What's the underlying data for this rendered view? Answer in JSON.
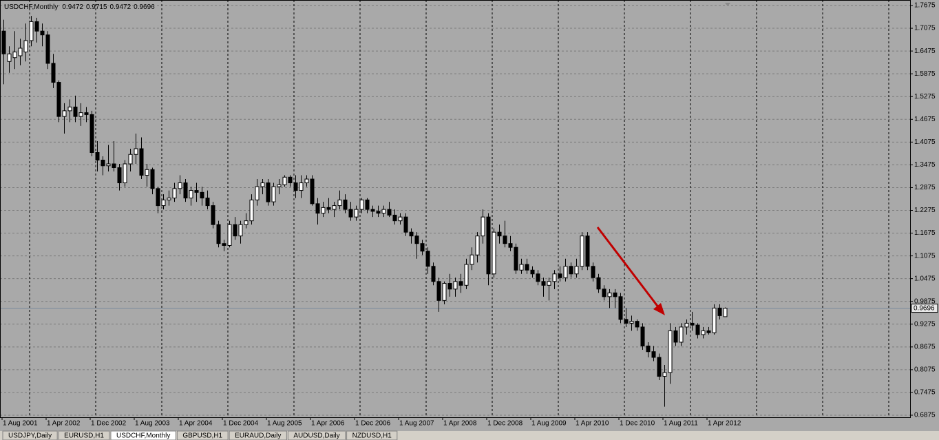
{
  "chart_data": {
    "type": "candlestick",
    "symbol": "USDCHF,Monthly",
    "categories": [
      "1 Aug 2001",
      null,
      null,
      null,
      null,
      null,
      null,
      null,
      "1 Apr 2002",
      null,
      null,
      null,
      null,
      null,
      null,
      null,
      "1 Dec 2002",
      null,
      null,
      null,
      null,
      null,
      null,
      null,
      "1 Aug 2003",
      null,
      null,
      null,
      null,
      null,
      null,
      null,
      "1 Apr 2004",
      null,
      null,
      null,
      null,
      null,
      null,
      null,
      "1 Dec 2004",
      null,
      null,
      null,
      null,
      null,
      null,
      null,
      "1 Aug 2005",
      null,
      null,
      null,
      null,
      null,
      null,
      null,
      "1 Apr 2006",
      null,
      null,
      null,
      null,
      null,
      null,
      null,
      "1 Dec 2006",
      null,
      null,
      null,
      null,
      null,
      null,
      null,
      "1 Aug 2007",
      null,
      null,
      null,
      null,
      null,
      null,
      null,
      "1 Apr 2008",
      null,
      null,
      null,
      null,
      null,
      null,
      null,
      "1 Dec 2008",
      null,
      null,
      null,
      null,
      null,
      null,
      null,
      "1 Aug 2009",
      null,
      null,
      null,
      null,
      null,
      null,
      null,
      "1 Apr 2010",
      null,
      null,
      null,
      null,
      null,
      null,
      null,
      "1 Dec 2010",
      null,
      null,
      null,
      null,
      null,
      null,
      null,
      "1 Aug 2011",
      null,
      null,
      null,
      null,
      null,
      null,
      null,
      "1 Apr 2012",
      null,
      null,
      null
    ],
    "open": [
      1.7,
      1.62,
      1.63,
      1.635,
      1.645,
      1.675,
      1.725,
      1.7,
      1.69,
      1.615,
      1.565,
      1.475,
      1.49,
      1.5,
      1.475,
      1.485,
      1.48,
      1.38,
      1.36,
      1.345,
      1.35,
      1.34,
      1.3,
      1.35,
      1.375,
      1.39,
      1.32,
      1.335,
      1.285,
      1.24,
      1.255,
      1.26,
      1.285,
      1.3,
      1.26,
      1.28,
      1.275,
      1.26,
      1.24,
      1.19,
      1.14,
      1.135,
      1.19,
      1.16,
      1.19,
      1.2,
      1.255,
      1.29,
      1.3,
      1.25,
      1.29,
      1.295,
      1.315,
      1.3,
      1.28,
      1.3,
      1.31,
      1.245,
      1.22,
      1.235,
      1.23,
      1.24,
      1.255,
      1.23,
      1.21,
      1.23,
      1.255,
      1.23,
      1.225,
      1.22,
      1.23,
      1.215,
      1.2,
      1.21,
      1.17,
      1.16,
      1.14,
      1.12,
      1.08,
      1.04,
      0.99,
      1.035,
      1.02,
      1.04,
      1.03,
      1.085,
      1.11,
      1.16,
      1.21,
      1.06,
      1.17,
      1.16,
      1.14,
      1.13,
      1.07,
      1.085,
      1.07,
      1.06,
      1.04,
      1.03,
      1.04,
      1.06,
      1.05,
      1.08,
      1.06,
      1.08,
      1.16,
      1.08,
      1.05,
      1.02,
      1.0,
      1.01,
      1.0,
      0.94,
      0.93,
      0.935,
      0.92,
      0.87,
      0.855,
      0.84,
      0.79,
      0.8,
      0.91,
      0.88,
      0.92,
      0.93,
      0.925,
      0.9,
      0.91,
      0.905,
      0.97,
      0.9472
    ],
    "high": [
      1.73,
      1.66,
      1.7,
      1.68,
      1.72,
      1.74,
      1.735,
      1.72,
      1.7,
      1.64,
      1.57,
      1.51,
      1.52,
      1.53,
      1.51,
      1.5,
      1.49,
      1.41,
      1.37,
      1.4,
      1.41,
      1.35,
      1.36,
      1.39,
      1.43,
      1.42,
      1.35,
      1.34,
      1.29,
      1.27,
      1.28,
      1.3,
      1.32,
      1.31,
      1.29,
      1.3,
      1.29,
      1.28,
      1.25,
      1.2,
      1.15,
      1.2,
      1.21,
      1.2,
      1.22,
      1.27,
      1.31,
      1.31,
      1.31,
      1.3,
      1.31,
      1.32,
      1.32,
      1.32,
      1.32,
      1.32,
      1.32,
      1.26,
      1.25,
      1.26,
      1.25,
      1.28,
      1.27,
      1.25,
      1.24,
      1.26,
      1.26,
      1.24,
      1.24,
      1.24,
      1.25,
      1.23,
      1.22,
      1.22,
      1.18,
      1.17,
      1.15,
      1.13,
      1.09,
      1.05,
      1.04,
      1.06,
      1.05,
      1.06,
      1.1,
      1.13,
      1.17,
      1.23,
      1.22,
      1.18,
      1.19,
      1.2,
      1.16,
      1.14,
      1.1,
      1.1,
      1.08,
      1.07,
      1.05,
      1.05,
      1.07,
      1.08,
      1.1,
      1.09,
      1.1,
      1.17,
      1.17,
      1.09,
      1.06,
      1.03,
      1.02,
      1.02,
      1.01,
      0.97,
      0.95,
      0.94,
      0.93,
      0.88,
      0.87,
      0.85,
      0.82,
      0.93,
      0.92,
      0.93,
      0.94,
      0.96,
      0.93,
      0.92,
      0.92,
      0.98,
      0.98,
      0.9715
    ],
    "low": [
      1.56,
      1.59,
      1.6,
      1.61,
      1.62,
      1.66,
      1.67,
      1.66,
      1.6,
      1.55,
      1.46,
      1.43,
      1.46,
      1.46,
      1.45,
      1.46,
      1.37,
      1.33,
      1.32,
      1.33,
      1.33,
      1.28,
      1.29,
      1.33,
      1.35,
      1.31,
      1.29,
      1.27,
      1.22,
      1.23,
      1.24,
      1.25,
      1.27,
      1.25,
      1.24,
      1.25,
      1.24,
      1.23,
      1.18,
      1.13,
      1.12,
      1.13,
      1.15,
      1.14,
      1.18,
      1.19,
      1.24,
      1.27,
      1.24,
      1.24,
      1.27,
      1.29,
      1.29,
      1.26,
      1.26,
      1.29,
      1.24,
      1.19,
      1.21,
      1.22,
      1.21,
      1.23,
      1.22,
      1.2,
      1.2,
      1.22,
      1.22,
      1.21,
      1.21,
      1.21,
      1.21,
      1.19,
      1.19,
      1.16,
      1.14,
      1.1,
      1.11,
      1.06,
      1.03,
      0.96,
      0.98,
      1.0,
      1.0,
      1.01,
      1.02,
      1.07,
      1.09,
      1.14,
      1.03,
      1.05,
      1.14,
      1.13,
      1.12,
      1.06,
      1.06,
      1.06,
      1.05,
      1.03,
      1.0,
      0.99,
      1.02,
      1.04,
      1.04,
      1.05,
      1.05,
      1.07,
      1.07,
      1.04,
      1.01,
      0.99,
      0.97,
      0.97,
      0.93,
      0.92,
      0.91,
      0.91,
      0.86,
      0.84,
      0.83,
      0.78,
      0.71,
      0.77,
      0.87,
      0.87,
      0.9,
      0.91,
      0.89,
      0.89,
      0.9,
      0.9,
      0.94,
      0.9472
    ],
    "close": [
      1.64,
      1.64,
      1.645,
      1.655,
      1.675,
      1.725,
      1.7,
      1.69,
      1.615,
      1.565,
      1.475,
      1.49,
      1.5,
      1.475,
      1.485,
      1.48,
      1.38,
      1.36,
      1.345,
      1.35,
      1.34,
      1.3,
      1.35,
      1.375,
      1.39,
      1.32,
      1.335,
      1.285,
      1.24,
      1.255,
      1.26,
      1.285,
      1.3,
      1.26,
      1.28,
      1.275,
      1.26,
      1.24,
      1.19,
      1.14,
      1.135,
      1.19,
      1.16,
      1.19,
      1.2,
      1.255,
      1.29,
      1.3,
      1.25,
      1.29,
      1.295,
      1.315,
      1.3,
      1.28,
      1.3,
      1.31,
      1.245,
      1.22,
      1.235,
      1.23,
      1.24,
      1.255,
      1.23,
      1.21,
      1.23,
      1.255,
      1.23,
      1.225,
      1.22,
      1.23,
      1.215,
      1.2,
      1.21,
      1.17,
      1.16,
      1.14,
      1.12,
      1.08,
      1.04,
      0.99,
      1.035,
      1.02,
      1.04,
      1.03,
      1.085,
      1.11,
      1.16,
      1.21,
      1.06,
      1.17,
      1.16,
      1.14,
      1.13,
      1.07,
      1.085,
      1.07,
      1.06,
      1.04,
      1.03,
      1.04,
      1.06,
      1.05,
      1.08,
      1.06,
      1.08,
      1.16,
      1.08,
      1.05,
      1.02,
      1.0,
      1.01,
      1.0,
      0.94,
      0.93,
      0.935,
      0.92,
      0.87,
      0.855,
      0.84,
      0.79,
      0.8,
      0.91,
      0.88,
      0.92,
      0.93,
      0.925,
      0.9,
      0.91,
      0.905,
      0.97,
      0.95,
      0.9696
    ],
    "ylim": [
      0.6875,
      1.7675
    ],
    "yticks": [
      1.7675,
      1.7075,
      1.6475,
      1.5875,
      1.5275,
      1.4675,
      1.4075,
      1.3475,
      1.2875,
      1.2275,
      1.1675,
      1.1075,
      1.0475,
      0.9875,
      0.9275,
      0.8675,
      0.8075,
      0.7475,
      0.6875
    ],
    "grid": true,
    "background": "#a9a9a9",
    "up_color": "#ffffff",
    "down_color": "#000000",
    "price_line_color": "#7b8a9c"
  },
  "tabs": [
    "USDJPY,Daily",
    "EURUSD,H1",
    "USDCHF,Monthly",
    "GBPUSD,H1",
    "EURAUD,Daily",
    "AUDUSD,Daily",
    "NZDUSD,H1"
  ],
  "active_tab": 2
}
